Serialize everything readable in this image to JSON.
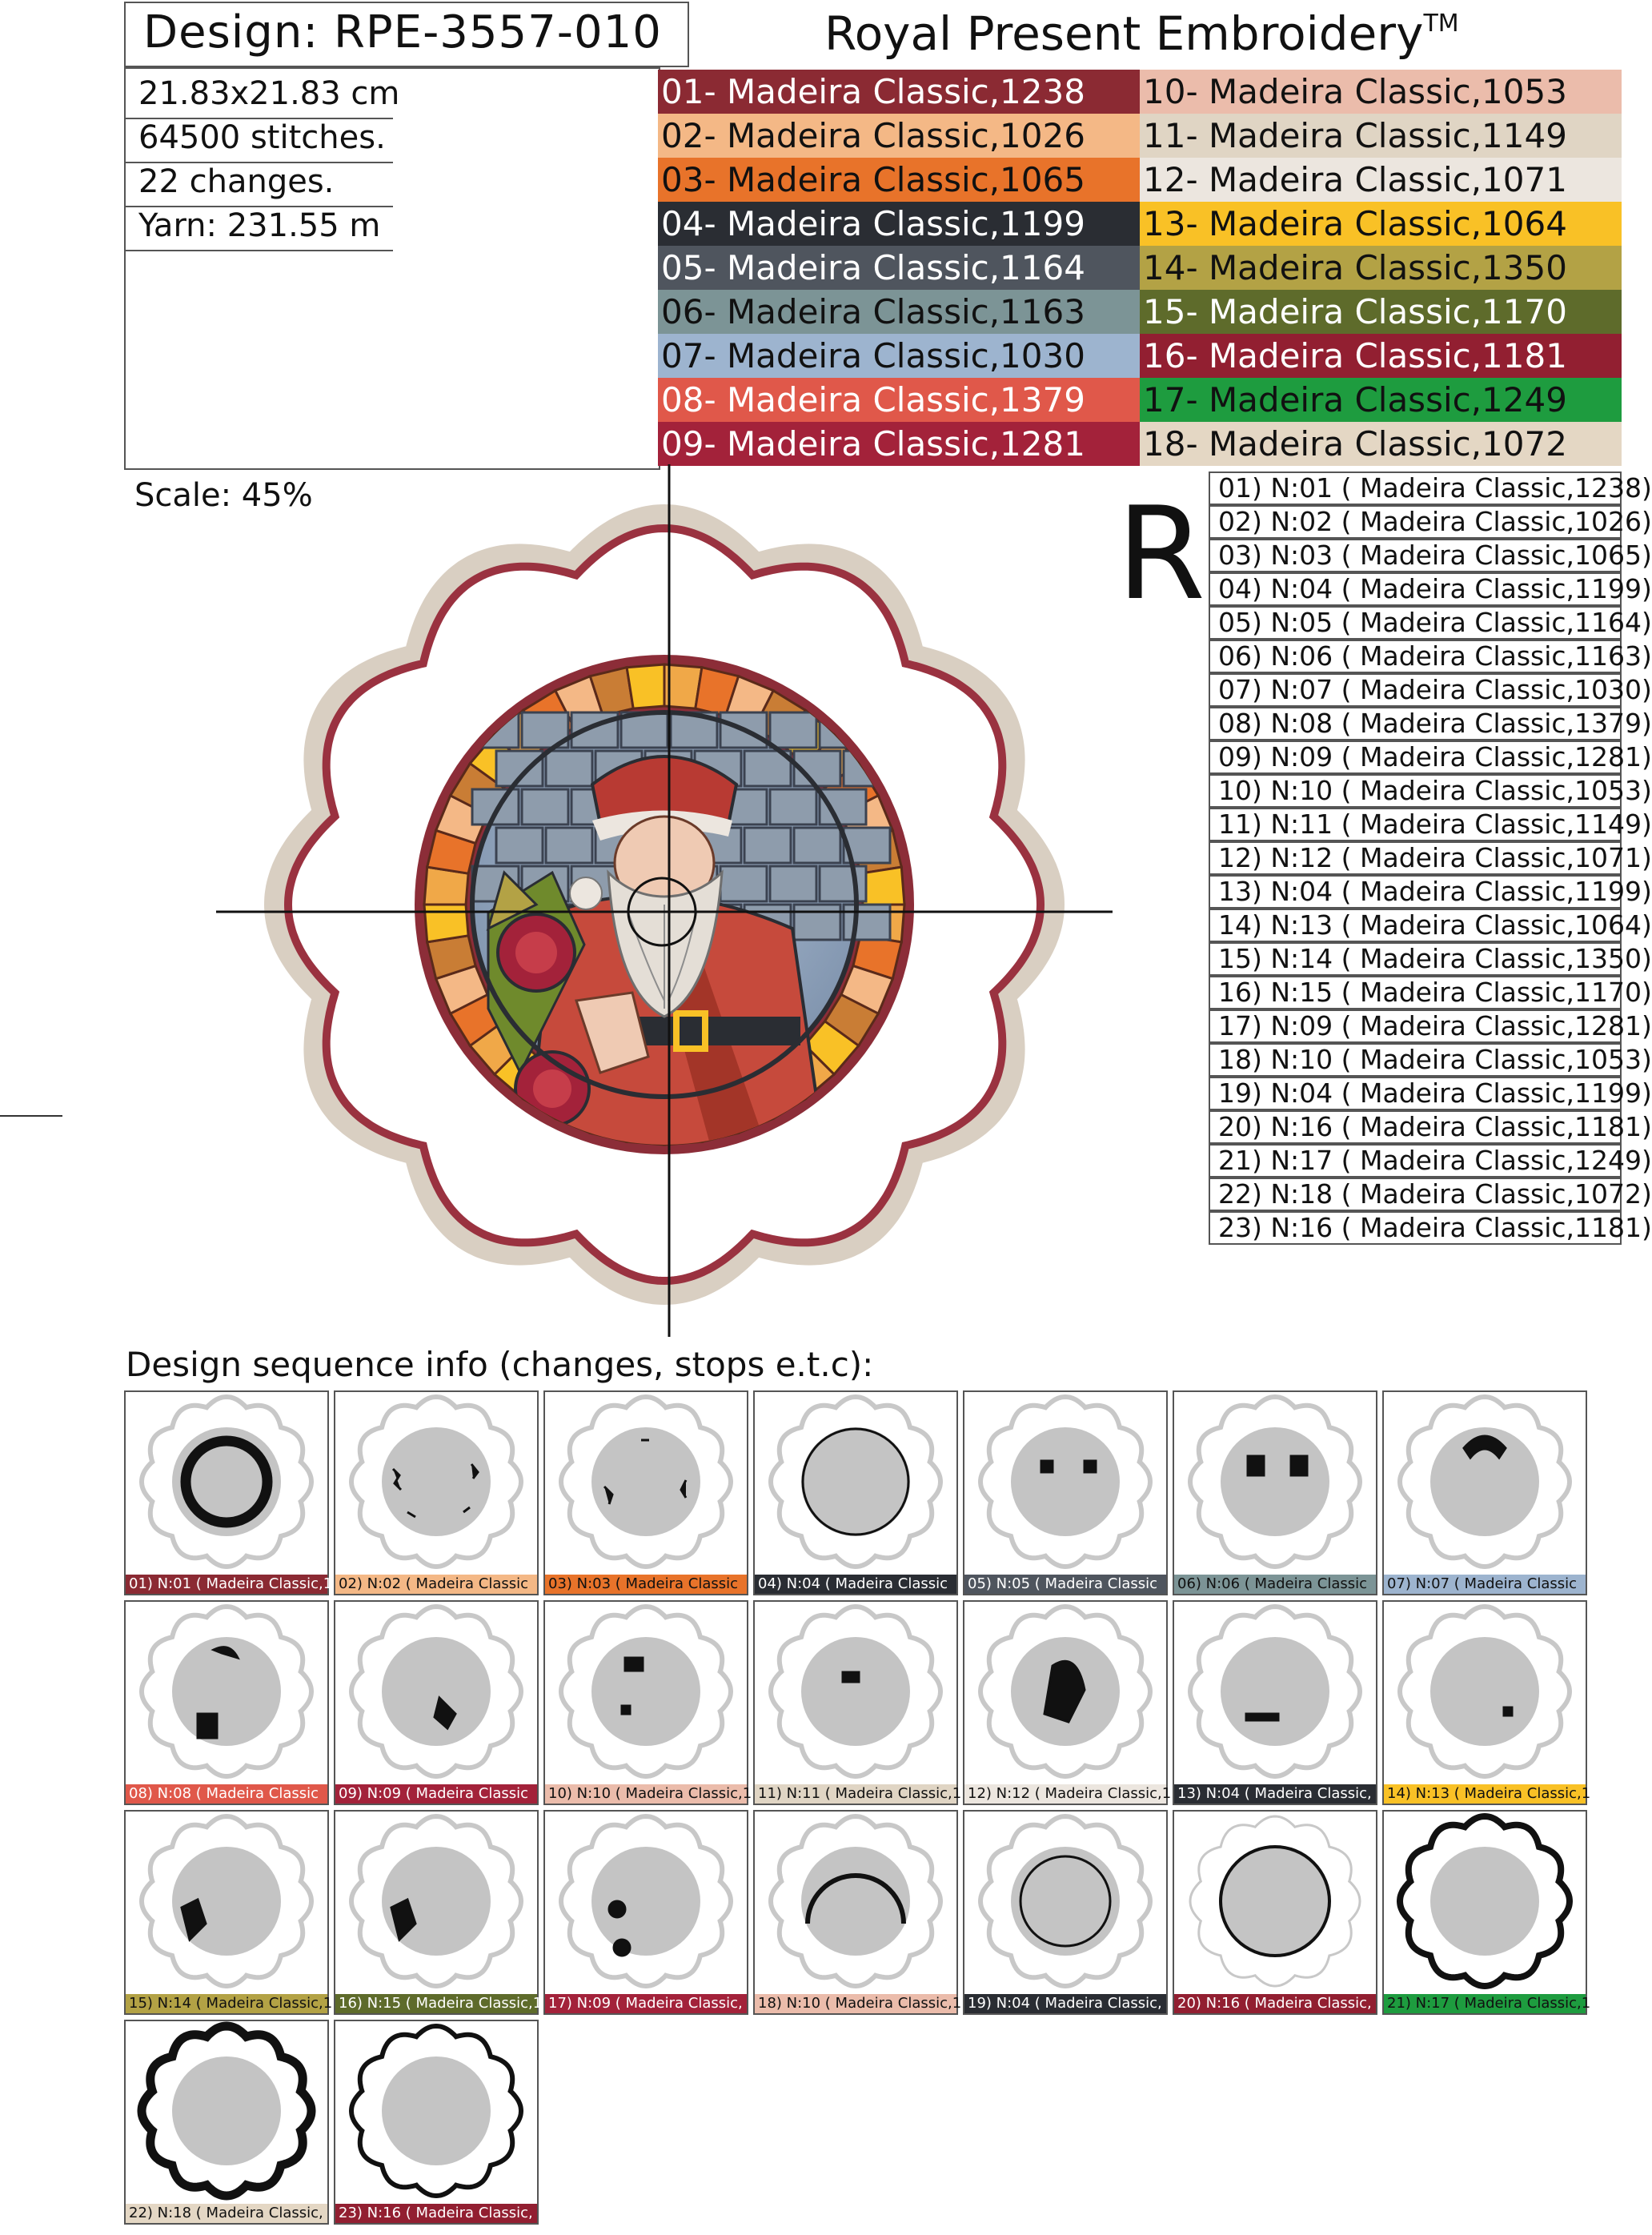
{
  "header": {
    "design_title": "Design: RPE-3557-010",
    "brand": "Royal Present Embroidery",
    "brand_mark": "TM"
  },
  "info": {
    "size": "21.83x21.83 cm",
    "stitches": "64500 stitches.",
    "changes": "22 changes.",
    "yarn": "Yarn: 231.55 m"
  },
  "scale": "Scale: 45%",
  "rotate_marker": "R",
  "colors": [
    {
      "label": "01- Madeira Classic,1238",
      "hex": "#8b2a33",
      "text": "#ffffff"
    },
    {
      "label": "02- Madeira Classic,1026",
      "hex": "#f4b886",
      "text": "#111111"
    },
    {
      "label": "03- Madeira Classic,1065",
      "hex": "#e8732a",
      "text": "#111111"
    },
    {
      "label": "04- Madeira Classic,1199",
      "hex": "#2a2d33",
      "text": "#ffffff"
    },
    {
      "label": "05- Madeira Classic,1164",
      "hex": "#4f555e",
      "text": "#ffffff"
    },
    {
      "label": "06- Madeira Classic,1163",
      "hex": "#7c9496",
      "text": "#111111"
    },
    {
      "label": "07- Madeira Classic,1030",
      "hex": "#9db4cf",
      "text": "#111111"
    },
    {
      "label": "08- Madeira Classic,1379",
      "hex": "#e0584a",
      "text": "#ffffff"
    },
    {
      "label": "09- Madeira Classic,1281",
      "hex": "#a3223a",
      "text": "#ffffff"
    },
    {
      "label": "10- Madeira Classic,1053",
      "hex": "#ebbcab",
      "text": "#111111"
    },
    {
      "label": "11- Madeira Classic,1149",
      "hex": "#e0d5c4",
      "text": "#111111"
    },
    {
      "label": "12- Madeira Classic,1071",
      "hex": "#ece6df",
      "text": "#111111"
    },
    {
      "label": "13- Madeira Classic,1064",
      "hex": "#f9c126",
      "text": "#111111"
    },
    {
      "label": "14- Madeira Classic,1350",
      "hex": "#b3a245",
      "text": "#111111"
    },
    {
      "label": "15- Madeira Classic,1170",
      "hex": "#5e6b2b",
      "text": "#ffffff"
    },
    {
      "label": "16- Madeira Classic,1181",
      "hex": "#921f31",
      "text": "#ffffff"
    },
    {
      "label": "17- Madeira Classic,1249",
      "hex": "#1e9c3f",
      "text": "#111111"
    },
    {
      "label": "18- Madeira Classic,1072",
      "hex": "#e4d7c4",
      "text": "#111111"
    }
  ],
  "sequence": [
    {
      "label": "01) N:01 ( Madeira Classic,1238)",
      "thumb": "01) N:01 ( Madeira Classic,1",
      "hex": "#8b2a33"
    },
    {
      "label": "02) N:02 ( Madeira Classic,1026)",
      "thumb": "02) N:02 ( Madeira Classic",
      "hex": "#f4b886"
    },
    {
      "label": "03) N:03 ( Madeira Classic,1065)",
      "thumb": "03) N:03 ( Madeira Classic",
      "hex": "#e8732a"
    },
    {
      "label": "04) N:04 ( Madeira Classic,1199)",
      "thumb": "04) N:04 ( Madeira Classic",
      "hex": "#2a2d33"
    },
    {
      "label": "05) N:05 ( Madeira Classic,1164)",
      "thumb": "05) N:05 ( Madeira Classic",
      "hex": "#4f555e"
    },
    {
      "label": "06) N:06 ( Madeira Classic,1163)",
      "thumb": "06) N:06 ( Madeira Classic",
      "hex": "#7c9496"
    },
    {
      "label": "07) N:07 ( Madeira Classic,1030)",
      "thumb": "07) N:07 ( Madeira Classic",
      "hex": "#9db4cf"
    },
    {
      "label": "08) N:08 ( Madeira Classic,1379)",
      "thumb": "08) N:08 ( Madeira Classic",
      "hex": "#e0584a"
    },
    {
      "label": "09) N:09 ( Madeira Classic,1281)",
      "thumb": "09) N:09 ( Madeira Classic",
      "hex": "#a3223a"
    },
    {
      "label": "10) N:10 ( Madeira Classic,1053)",
      "thumb": "10) N:10 ( Madeira Classic,1",
      "hex": "#ebbcab"
    },
    {
      "label": "11) N:11 ( Madeira Classic,1149)",
      "thumb": "11) N:11 ( Madeira Classic,11",
      "hex": "#e0d5c4"
    },
    {
      "label": "12) N:12 ( Madeira Classic,1071)",
      "thumb": "12) N:12 ( Madeira Classic,1",
      "hex": "#ece6df"
    },
    {
      "label": "13) N:04 ( Madeira Classic,1199)",
      "thumb": "13) N:04 ( Madeira Classic,",
      "hex": "#2a2d33"
    },
    {
      "label": "14) N:13 ( Madeira Classic,1064)",
      "thumb": "14) N:13 ( Madeira Classic,1",
      "hex": "#f9c126"
    },
    {
      "label": "15) N:14 ( Madeira Classic,1350)",
      "thumb": "15) N:14 ( Madeira Classic,1",
      "hex": "#b3a245"
    },
    {
      "label": "16) N:15 ( Madeira Classic,1170)",
      "thumb": "16) N:15 ( Madeira Classic,1",
      "hex": "#5e6b2b"
    },
    {
      "label": "17) N:09 ( Madeira Classic,1281)",
      "thumb": "17) N:09 ( Madeira Classic,",
      "hex": "#a3223a"
    },
    {
      "label": "18) N:10 ( Madeira Classic,1053)",
      "thumb": "18) N:10 ( Madeira Classic,1",
      "hex": "#ebbcab"
    },
    {
      "label": "19) N:04 ( Madeira Classic,1199)",
      "thumb": "19) N:04 ( Madeira Classic,",
      "hex": "#2a2d33"
    },
    {
      "label": "20) N:16 ( Madeira Classic,1181)",
      "thumb": "20) N:16 ( Madeira Classic,",
      "hex": "#921f31"
    },
    {
      "label": "21) N:17 ( Madeira Classic,1249)",
      "thumb": "21) N:17 ( Madeira Classic,1",
      "hex": "#1e9c3f"
    },
    {
      "label": "22) N:18 ( Madeira Classic,1072)",
      "thumb": "22) N:18 ( Madeira Classic,",
      "hex": "#e4d7c4"
    },
    {
      "label": "23) N:16 ( Madeira Classic,1181)",
      "thumb": "23) N:16 ( Madeira Classic,",
      "hex": "#921f31"
    }
  ],
  "sequence_heading": "Design sequence info (changes, stops e.t.c):",
  "icons": {
    "preview": "santa-stained-glass-embroidery-image",
    "thumbnail": "embroidery-step-thumbnail-icon"
  }
}
